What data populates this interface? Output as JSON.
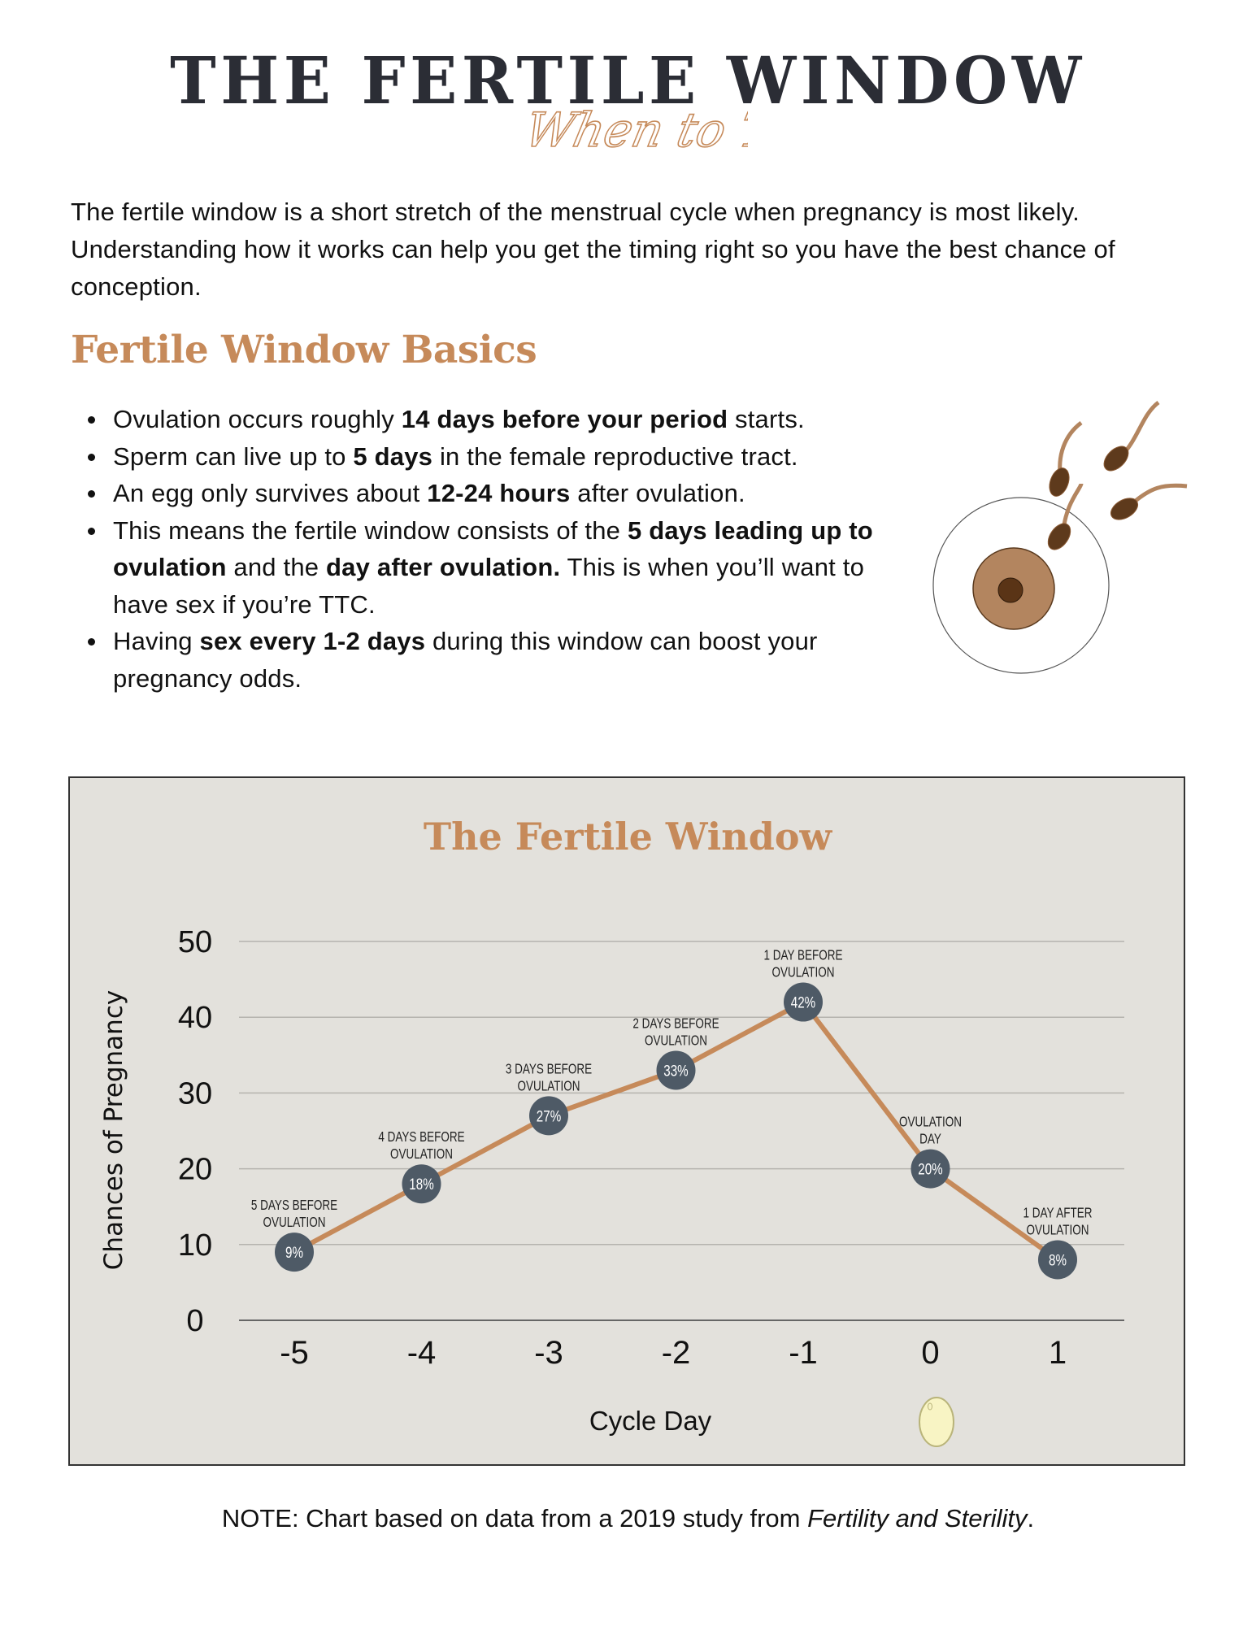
{
  "header": {
    "title": "THE FERTILE WINDOW",
    "script_subtitle": "When to Try"
  },
  "intro": "The fertile window is a short stretch of the menstrual cycle when pregnancy is most likely. Understanding how it works can help you get the timing right so you have the best chance of conception.",
  "basics": {
    "title": "Fertile Window Basics",
    "items": [
      {
        "parts": [
          {
            "t": "Ovulation occurs roughly ",
            "b": false
          },
          {
            "t": "14 days before your period",
            "b": true
          },
          {
            "t": " starts.",
            "b": false
          }
        ]
      },
      {
        "parts": [
          {
            "t": "Sperm can live up to ",
            "b": false
          },
          {
            "t": "5 days",
            "b": true
          },
          {
            "t": " in the female reproductive tract.",
            "b": false
          }
        ]
      },
      {
        "parts": [
          {
            "t": "An egg only survives about ",
            "b": false
          },
          {
            "t": "12-24 hours",
            "b": true
          },
          {
            "t": " after ovulation.",
            "b": false
          }
        ]
      },
      {
        "parts": [
          {
            "t": "This means the fertile window consists of the ",
            "b": false
          },
          {
            "t": "5 days leading up to ovulation",
            "b": true
          },
          {
            "t": " and the ",
            "b": false
          },
          {
            "t": "day after ovulation.",
            "b": true
          },
          {
            "t": " This is when you’ll want to have sex if you’re TTC.",
            "b": false
          }
        ]
      },
      {
        "parts": [
          {
            "t": "Having ",
            "b": false
          },
          {
            "t": "sex every 1-2 days",
            "b": true
          },
          {
            "t": " during this window can boost your pregnancy odds.",
            "b": false
          }
        ]
      }
    ],
    "illustration_icon": "sperm-and-egg-icon"
  },
  "chart_data": {
    "type": "line",
    "title": "The Fertile Window",
    "xlabel": "Cycle Day",
    "ylabel": "Chances of Pregnancy",
    "x": [
      -5,
      -4,
      -3,
      -2,
      -1,
      0,
      1
    ],
    "x_tick_labels": [
      "-5",
      "-4",
      "-3",
      "-2",
      "-1",
      "0",
      "1"
    ],
    "y": [
      9,
      18,
      27,
      33,
      42,
      20,
      8
    ],
    "data_labels": [
      "9%",
      "18%",
      "27%",
      "33%",
      "42%",
      "20%",
      "8%"
    ],
    "point_annotations": [
      [
        "5 DAYS BEFORE",
        "OVULATION"
      ],
      [
        "4 DAYS BEFORE",
        "OVULATION"
      ],
      [
        "3 DAYS BEFORE",
        "OVULATION"
      ],
      [
        "2 DAYS BEFORE",
        "OVULATION"
      ],
      [
        "1 DAY BEFORE",
        "OVULATION"
      ],
      [
        "OVULATION",
        "DAY"
      ],
      [
        "1 DAY AFTER",
        "OVULATION"
      ]
    ],
    "ylim": [
      0,
      50
    ],
    "y_ticks": [
      0,
      10,
      20,
      30,
      40,
      50
    ],
    "grid": true,
    "legend": "none",
    "x_axis_icon": "egg-icon",
    "colors": {
      "line": "#c68a5a",
      "marker": "#4e5a66",
      "background": "#e3e1dc",
      "grid": "#b5b3ae"
    }
  },
  "note": {
    "prefix": "NOTE: Chart based on data from a 2019 study from ",
    "source": "Fertility and Sterility",
    "suffix": "."
  },
  "colors": {
    "title": "#2b2d35",
    "accent": "#c68a5a"
  }
}
